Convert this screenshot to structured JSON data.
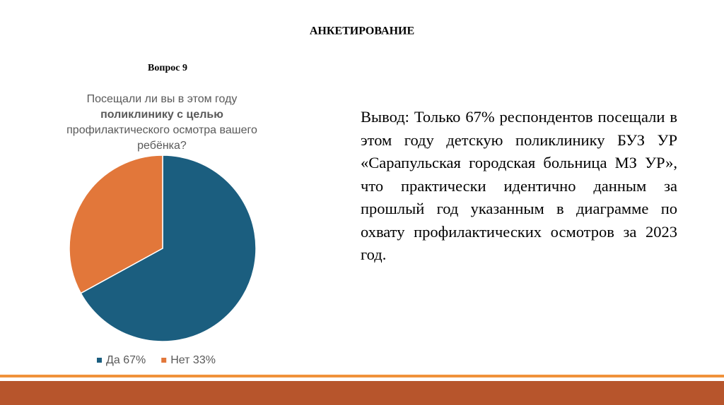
{
  "slide_title": "АНКЕТИРОВАНИЕ",
  "question": "Вопрос 9",
  "conclusion": "Вывод: Только 67% респондентов посещали в этом году детскую поликлинику БУЗ УР «Сарапульская городская больница МЗ УР», что практически идентично данным за прошлый год указанным в диаграмме по охвату профилактических осмотров за 2023 год.",
  "chart_data": {
    "type": "pie",
    "title_lines": [
      "Посещали ли вы в этом году",
      "поликлинику с целью",
      "профилактического осмотра вашего",
      "ребёнка?"
    ],
    "categories": [
      "Да",
      "Нет"
    ],
    "values": [
      67,
      33
    ],
    "value_labels": [
      "67%",
      "33%"
    ],
    "colors": [
      "#1b5e7f",
      "#e2773a"
    ]
  }
}
